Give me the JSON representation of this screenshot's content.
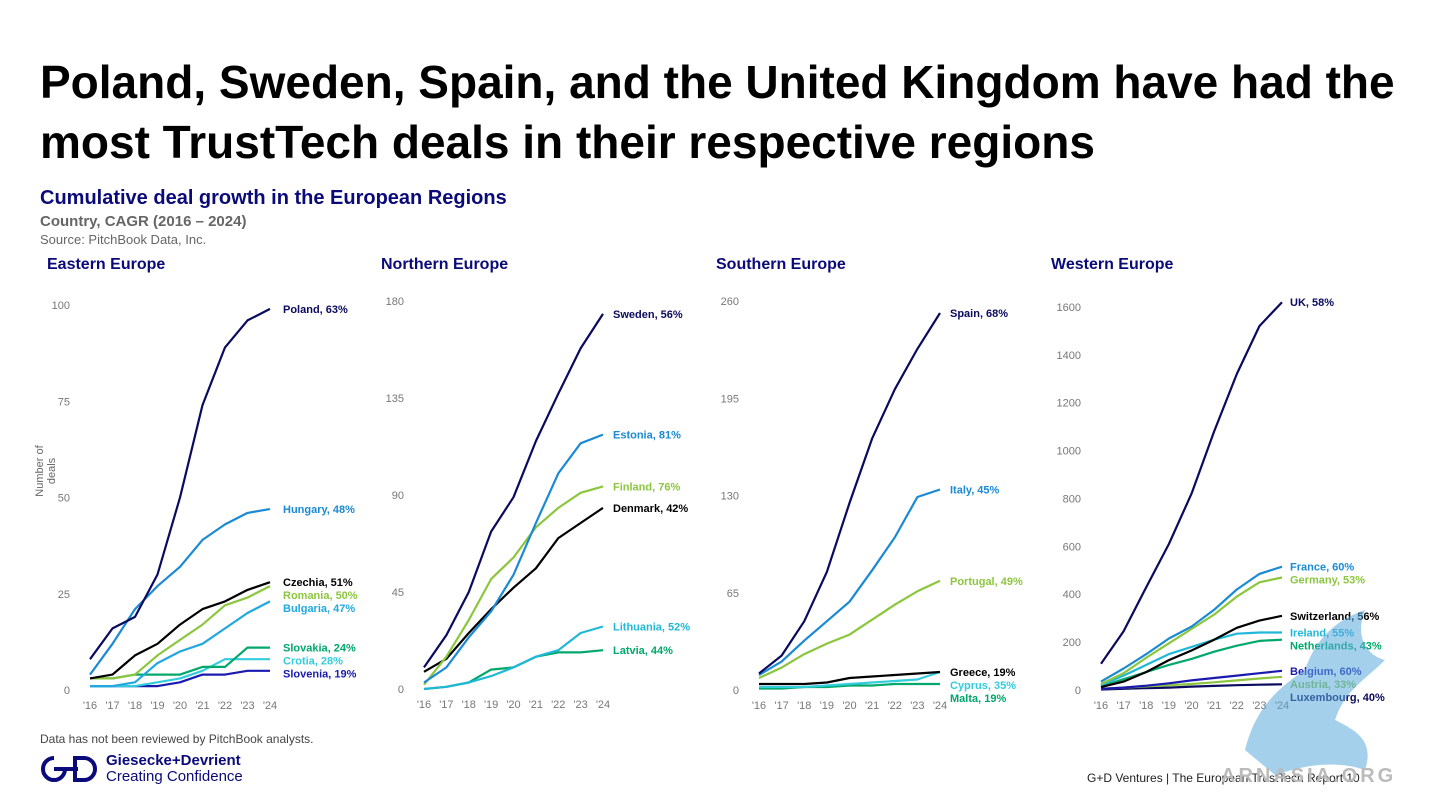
{
  "page": {
    "title": "Poland, Sweden, Spain, and the United Kingdom have had the most TrustTech deals in their respective regions",
    "subtitle": "Cumulative deal growth in the European Regions",
    "subsubtitle": "Country, CAGR (2016 – 2024)",
    "source": "Source: PitchBook Data, Inc.",
    "footnote": "Data has not been reviewed by PitchBook analysts.",
    "logo_name": "Giesecke+Devrient",
    "logo_tagline": "Creating Confidence",
    "footer": "G+D Ventures  |  The European TrustTech Report   10",
    "watermark_text": "ARNASIA.ORG",
    "y_axis_label": "Number of deals"
  },
  "chart_data": [
    {
      "type": "line",
      "title": "Eastern Europe",
      "categories": [
        "'16",
        "'17",
        "'18",
        "'19",
        "'20",
        "'21",
        "'22",
        "'23",
        "'24"
      ],
      "ylim": [
        0,
        100
      ],
      "yticks": [
        0,
        25,
        50,
        75,
        100
      ],
      "ylabel": "Number of deals",
      "series": [
        {
          "name": "Poland, 63%",
          "color": "#0a0a5e",
          "values": [
            8,
            16,
            19,
            30,
            50,
            74,
            89,
            96,
            99
          ]
        },
        {
          "name": "Hungary, 48%",
          "color": "#1a8ad4",
          "values": [
            4,
            12,
            21,
            27,
            32,
            39,
            43,
            46,
            47
          ]
        },
        {
          "name": "Czechia, 51%",
          "color": "#000000",
          "values": [
            3,
            4,
            9,
            12,
            17,
            21,
            23,
            26,
            28
          ]
        },
        {
          "name": "Romania, 50%",
          "color": "#8cc63e",
          "values": [
            3,
            3,
            4,
            9,
            13,
            17,
            22,
            24,
            27
          ]
        },
        {
          "name": "Bulgaria, 47%",
          "color": "#21a8e0",
          "values": [
            1,
            1,
            2,
            7,
            10,
            12,
            16,
            20,
            23
          ]
        },
        {
          "name": "Slovakia, 24%",
          "color": "#00a86b",
          "values": [
            3,
            3,
            4,
            4,
            4,
            6,
            6,
            11,
            11
          ]
        },
        {
          "name": "Crotia, 28%",
          "color": "#33ccdd",
          "values": [
            1,
            1,
            1,
            2,
            3,
            5,
            8,
            8,
            8
          ]
        },
        {
          "name": "Slovenia, 19%",
          "color": "#1a1ab0",
          "values": [
            1,
            1,
            1,
            1,
            2,
            4,
            4,
            5,
            5
          ]
        }
      ]
    },
    {
      "type": "line",
      "title": "Northern Europe",
      "categories": [
        "'16",
        "'17",
        "'18",
        "'19",
        "'20",
        "'21",
        "'22",
        "'23",
        "'24"
      ],
      "ylim": [
        0,
        180
      ],
      "yticks": [
        0,
        45,
        90,
        135,
        180
      ],
      "series": [
        {
          "name": "Sweden, 56%",
          "color": "#0a0a5e",
          "values": [
            10,
            25,
            45,
            73,
            89,
            115,
            137,
            158,
            174
          ]
        },
        {
          "name": "Estonia, 81%",
          "color": "#1a8ad4",
          "values": [
            3,
            10,
            24,
            36,
            53,
            77,
            100,
            114,
            118
          ]
        },
        {
          "name": "Finland, 76%",
          "color": "#8cc63e",
          "values": [
            2,
            15,
            32,
            51,
            61,
            75,
            84,
            91,
            94
          ]
        },
        {
          "name": "Denmark, 42%",
          "color": "#000000",
          "values": [
            8,
            14,
            26,
            37,
            47,
            56,
            70,
            77,
            84
          ]
        },
        {
          "name": "Lithuania, 52%",
          "color": "#21b8d8",
          "values": [
            0,
            1,
            3,
            6,
            10,
            15,
            18,
            26,
            29
          ]
        },
        {
          "name": "Latvia, 44%",
          "color": "#00a86b",
          "values": [
            0,
            1,
            3,
            9,
            10,
            15,
            17,
            17,
            18
          ]
        }
      ]
    },
    {
      "type": "line",
      "title": "Southern Europe",
      "categories": [
        "'16",
        "'17",
        "'18",
        "'19",
        "'20",
        "'21",
        "'22",
        "'23",
        "'24"
      ],
      "ylim": [
        0,
        260
      ],
      "yticks": [
        0,
        65,
        130,
        195,
        260
      ],
      "series": [
        {
          "name": "Spain, 68%",
          "color": "#0a0a5e",
          "values": [
            11,
            23,
            46,
            79,
            125,
            168,
            201,
            228,
            252
          ]
        },
        {
          "name": "Italy, 45%",
          "color": "#1a8ad4",
          "values": [
            10,
            19,
            33,
            46,
            59,
            80,
            102,
            129,
            134
          ]
        },
        {
          "name": "Portugal, 49%",
          "color": "#8cc63e",
          "values": [
            8,
            15,
            24,
            31,
            37,
            47,
            57,
            66,
            73
          ]
        },
        {
          "name": "Greece, 19%",
          "color": "#000000",
          "values": [
            4,
            4,
            4,
            5,
            8,
            9,
            10,
            11,
            12
          ]
        },
        {
          "name": "Cyprus, 35%",
          "color": "#33ccdd",
          "values": [
            2,
            2,
            2,
            3,
            4,
            5,
            6,
            7,
            12
          ]
        },
        {
          "name": "Malta, 19%",
          "color": "#00a86b",
          "values": [
            1,
            1,
            2,
            2,
            3,
            3,
            4,
            4,
            4
          ]
        }
      ]
    },
    {
      "type": "line",
      "title": "Western Europe",
      "categories": [
        "'16",
        "'17",
        "'18",
        "'19",
        "'20",
        "'21",
        "'22",
        "'23",
        "'24"
      ],
      "ylim": [
        0,
        1650
      ],
      "yticks": [
        0,
        200,
        400,
        600,
        800,
        1000,
        1200,
        1400,
        1600
      ],
      "series": [
        {
          "name": "UK, 58%",
          "color": "#0a0a5e",
          "values": [
            110,
            245,
            430,
            610,
            820,
            1080,
            1320,
            1520,
            1620
          ]
        },
        {
          "name": "France, 60%",
          "color": "#1a8ad4",
          "values": [
            35,
            90,
            150,
            215,
            265,
            335,
            420,
            485,
            515
          ]
        },
        {
          "name": "Germany, 53%",
          "color": "#8cc63e",
          "values": [
            25,
            70,
            135,
            195,
            255,
            315,
            390,
            450,
            470
          ]
        },
        {
          "name": "Switzerland, 56%",
          "color": "#000000",
          "values": [
            12,
            35,
            75,
            125,
            165,
            210,
            260,
            290,
            310
          ]
        },
        {
          "name": "Ireland, 55%",
          "color": "#21b8d8",
          "values": [
            20,
            60,
            105,
            150,
            180,
            210,
            235,
            240,
            240
          ]
        },
        {
          "name": "Netherlands, 43%",
          "color": "#00a86b",
          "values": [
            15,
            45,
            75,
            105,
            130,
            160,
            185,
            205,
            210
          ]
        },
        {
          "name": "Belgium, 60%",
          "color": "#1a1ab0",
          "values": [
            5,
            10,
            18,
            28,
            40,
            50,
            60,
            70,
            80
          ]
        },
        {
          "name": "Austria, 33%",
          "color": "#8cc63e",
          "values": [
            5,
            10,
            15,
            20,
            25,
            32,
            40,
            48,
            55
          ]
        },
        {
          "name": "Luxembourg, 40%",
          "color": "#0a0a5e",
          "values": [
            2,
            5,
            8,
            10,
            14,
            17,
            20,
            22,
            24
          ]
        }
      ]
    }
  ]
}
